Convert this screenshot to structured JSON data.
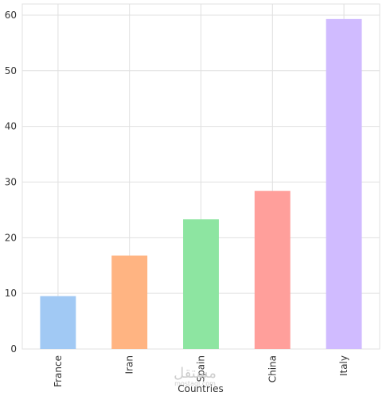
{
  "chart_data": {
    "type": "bar",
    "categories": [
      "France",
      "Iran",
      "Spain",
      "China",
      "Italy"
    ],
    "values": [
      9.5,
      16.8,
      23.3,
      28.4,
      59.3
    ],
    "colors": [
      "#a1c9f4",
      "#ffb482",
      "#8de5a1",
      "#ff9f9b",
      "#d0bbff"
    ],
    "title": "",
    "xlabel": "Countries",
    "ylabel": "",
    "ylim": [
      0,
      62
    ],
    "yticks": [
      0,
      10,
      20,
      30,
      40,
      50,
      60
    ],
    "grid": true,
    "legend": "none"
  },
  "watermark": {
    "text": "مستقل",
    "subtext": "mostaql.com"
  }
}
